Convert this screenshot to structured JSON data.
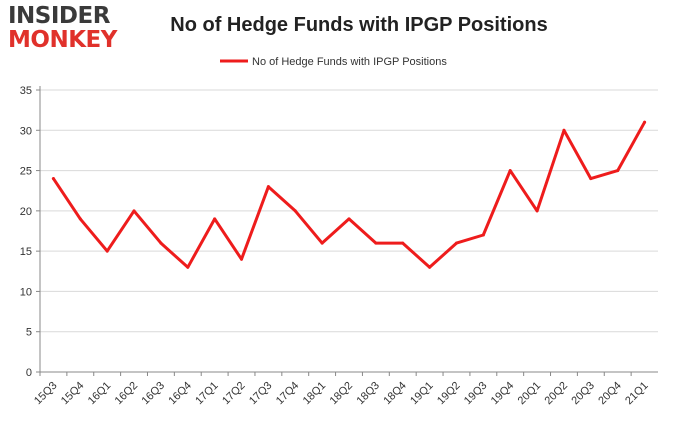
{
  "logo": {
    "line1": "INSIDER",
    "line2": "MONKEY"
  },
  "colors": {
    "series": "#ee1c1c",
    "grid": "#d9d9d9",
    "axis": "#888888"
  },
  "chart_data": {
    "type": "line",
    "title": "No of Hedge Funds with IPGP Positions",
    "xlabel": "",
    "ylabel": "",
    "ylim": [
      0,
      35
    ],
    "yticks": [
      0,
      5,
      10,
      15,
      20,
      25,
      30,
      35
    ],
    "grid": "horizontal",
    "legend": "top-center",
    "categories": [
      "15Q3",
      "15Q4",
      "16Q1",
      "16Q2",
      "16Q3",
      "16Q4",
      "17Q1",
      "17Q2",
      "17Q3",
      "17Q4",
      "18Q1",
      "18Q2",
      "18Q3",
      "18Q4",
      "19Q1",
      "19Q2",
      "19Q3",
      "19Q4",
      "20Q1",
      "20Q2",
      "20Q3",
      "20Q4",
      "21Q1"
    ],
    "series": [
      {
        "name": "No of Hedge Funds with IPGP Positions",
        "values": [
          24,
          19,
          15,
          20,
          16,
          13,
          19,
          14,
          23,
          20,
          16,
          19,
          16,
          16,
          13,
          16,
          17,
          25,
          20,
          30,
          24,
          25,
          31
        ]
      }
    ]
  }
}
